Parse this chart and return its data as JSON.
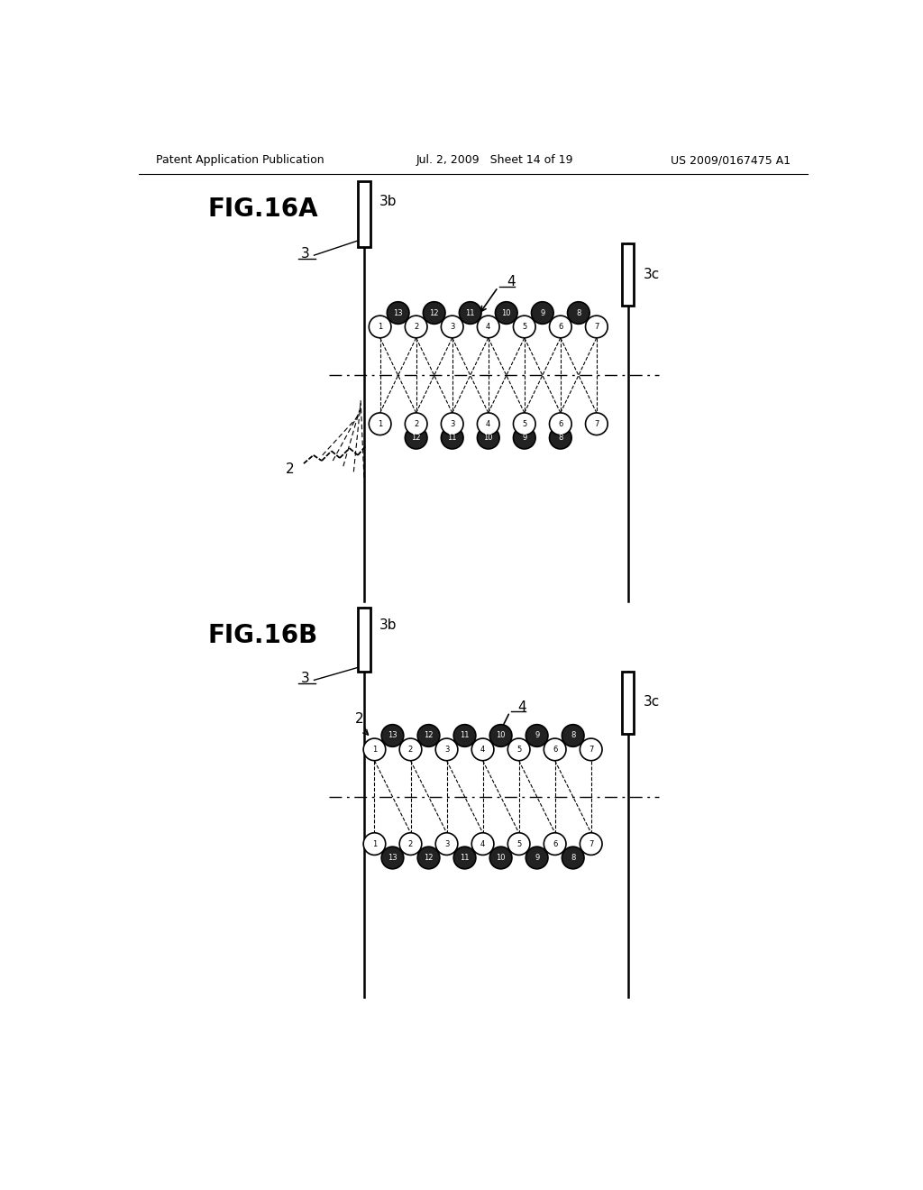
{
  "header_left": "Patent Application Publication",
  "header_center": "Jul. 2, 2009   Sheet 14 of 19",
  "header_right": "US 2009/0167475 A1",
  "fig_a_label": "FIG.16A",
  "fig_b_label": "FIG.16B",
  "bg_color": "#ffffff",
  "line_color": "#000000",
  "circle_fill": "#ffffff",
  "dark_circle_fill": "#222222",
  "circle_edge": "#000000"
}
